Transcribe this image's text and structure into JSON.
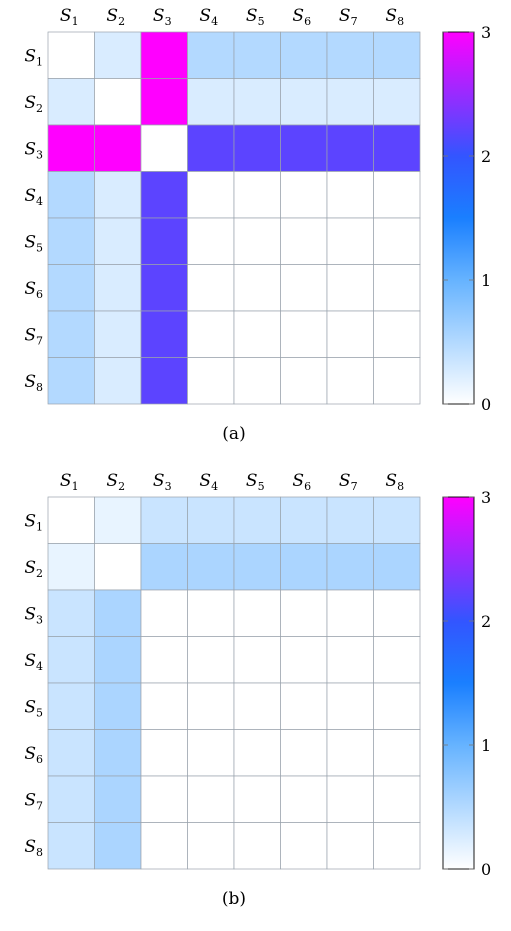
{
  "chart_data": [
    {
      "type": "heatmap",
      "caption": "(a)",
      "row_labels": [
        {
          "base": "S",
          "sub": "1"
        },
        {
          "base": "S",
          "sub": "2"
        },
        {
          "base": "S",
          "sub": "3"
        },
        {
          "base": "S",
          "sub": "4"
        },
        {
          "base": "S",
          "sub": "5"
        },
        {
          "base": "S",
          "sub": "6"
        },
        {
          "base": "S",
          "sub": "7"
        },
        {
          "base": "S",
          "sub": "8"
        }
      ],
      "col_labels": [
        {
          "base": "S",
          "sub": "1"
        },
        {
          "base": "S",
          "sub": "2"
        },
        {
          "base": "S",
          "sub": "3"
        },
        {
          "base": "S",
          "sub": "4"
        },
        {
          "base": "S",
          "sub": "5"
        },
        {
          "base": "S",
          "sub": "6"
        },
        {
          "base": "S",
          "sub": "7"
        },
        {
          "base": "S",
          "sub": "8"
        }
      ],
      "values": [
        [
          0,
          0.25,
          3,
          0.5,
          0.5,
          0.5,
          0.5,
          0.5
        ],
        [
          0.25,
          0,
          3,
          0.25,
          0.25,
          0.25,
          0.25,
          0.25
        ],
        [
          3,
          3,
          0,
          2.2,
          2.2,
          2.2,
          2.2,
          2.2
        ],
        [
          0.5,
          0.25,
          2.2,
          0,
          0,
          0,
          0,
          0
        ],
        [
          0.5,
          0.25,
          2.2,
          0,
          0,
          0,
          0,
          0
        ],
        [
          0.5,
          0.25,
          2.2,
          0,
          0,
          0,
          0,
          0
        ],
        [
          0.5,
          0.25,
          2.2,
          0,
          0,
          0,
          0,
          0
        ],
        [
          0.5,
          0.25,
          2.2,
          0,
          0,
          0,
          0,
          0
        ]
      ],
      "colorbar": {
        "min": 0,
        "max": 3,
        "ticks": [
          "0",
          "1",
          "2",
          "3"
        ]
      }
    },
    {
      "type": "heatmap",
      "caption": "(b)",
      "row_labels": [
        {
          "base": "S",
          "sub": "1"
        },
        {
          "base": "S",
          "sub": "2"
        },
        {
          "base": "S",
          "sub": "3"
        },
        {
          "base": "S",
          "sub": "4"
        },
        {
          "base": "S",
          "sub": "5"
        },
        {
          "base": "S",
          "sub": "6"
        },
        {
          "base": "S",
          "sub": "7"
        },
        {
          "base": "S",
          "sub": "8"
        }
      ],
      "col_labels": [
        {
          "base": "S",
          "sub": "1"
        },
        {
          "base": "S",
          "sub": "2"
        },
        {
          "base": "S",
          "sub": "3"
        },
        {
          "base": "S",
          "sub": "4"
        },
        {
          "base": "S",
          "sub": "5"
        },
        {
          "base": "S",
          "sub": "6"
        },
        {
          "base": "S",
          "sub": "7"
        },
        {
          "base": "S",
          "sub": "8"
        }
      ],
      "values": [
        [
          0,
          0.15,
          0.35,
          0.35,
          0.35,
          0.35,
          0.35,
          0.35
        ],
        [
          0.15,
          0,
          0.55,
          0.55,
          0.55,
          0.55,
          0.55,
          0.55
        ],
        [
          0.35,
          0.55,
          0,
          0,
          0,
          0,
          0,
          0
        ],
        [
          0.35,
          0.55,
          0,
          0,
          0,
          0,
          0,
          0
        ],
        [
          0.35,
          0.55,
          0,
          0,
          0,
          0,
          0,
          0
        ],
        [
          0.35,
          0.55,
          0,
          0,
          0,
          0,
          0,
          0
        ],
        [
          0.35,
          0.55,
          0,
          0,
          0,
          0,
          0,
          0
        ],
        [
          0.35,
          0.55,
          0,
          0,
          0,
          0,
          0,
          0
        ]
      ],
      "colorbar": {
        "min": 0,
        "max": 3,
        "ticks": [
          "0",
          "1",
          "2",
          "3"
        ]
      }
    }
  ],
  "colormap": [
    {
      "v": 0,
      "color": "#ffffff"
    },
    {
      "v": 1,
      "color": "#66b3ff"
    },
    {
      "v": 1.5,
      "color": "#1a7fff"
    },
    {
      "v": 2,
      "color": "#3355ff"
    },
    {
      "v": 3,
      "color": "#ff00ff"
    }
  ]
}
